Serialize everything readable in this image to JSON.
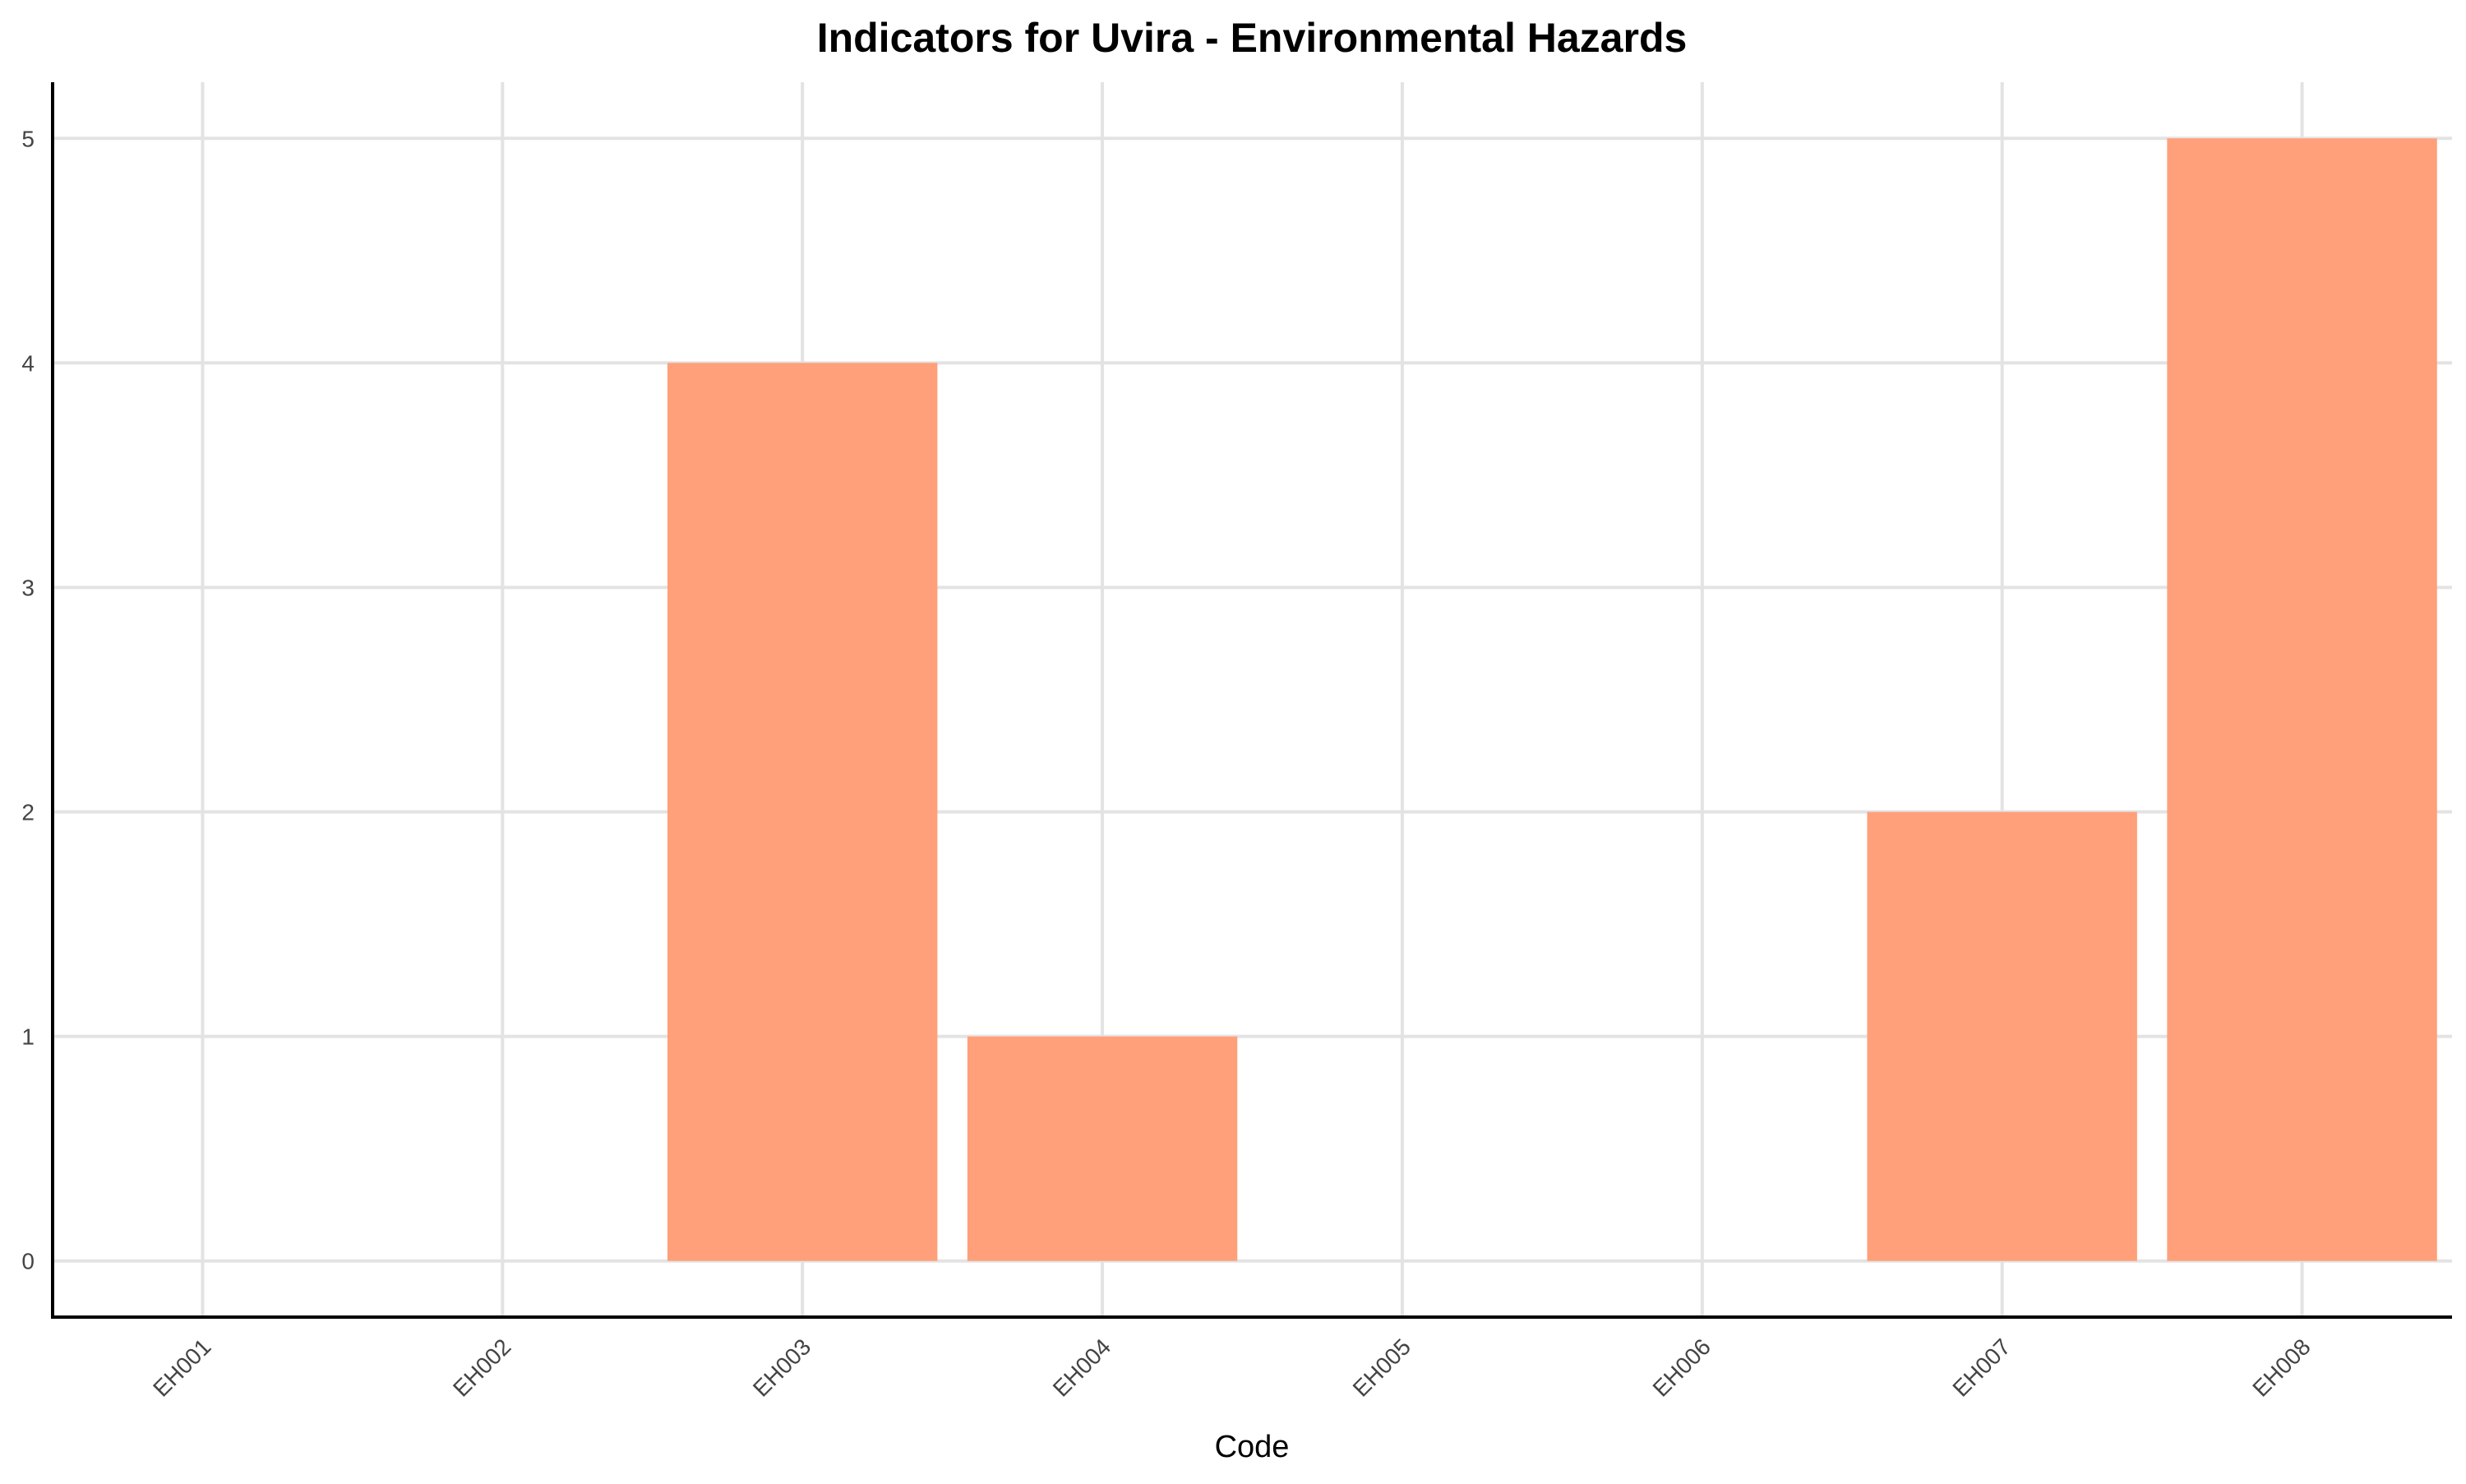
{
  "chart_data": {
    "type": "bar",
    "title": "Indicators for Uvira - Environmental Hazards",
    "xlabel": "Code",
    "ylabel": "",
    "categories": [
      "EH001",
      "EH002",
      "EH003",
      "EH004",
      "EH005",
      "EH006",
      "EH007",
      "EH008"
    ],
    "values": [
      0,
      0,
      4,
      1,
      0,
      0,
      2,
      5
    ],
    "ylim": [
      -0.25,
      5.25
    ],
    "yticks": [
      "0",
      "1",
      "2",
      "3",
      "4",
      "5"
    ],
    "grid": true,
    "bar_color": "#ffa07a",
    "grid_color": "#e3e3e3"
  }
}
